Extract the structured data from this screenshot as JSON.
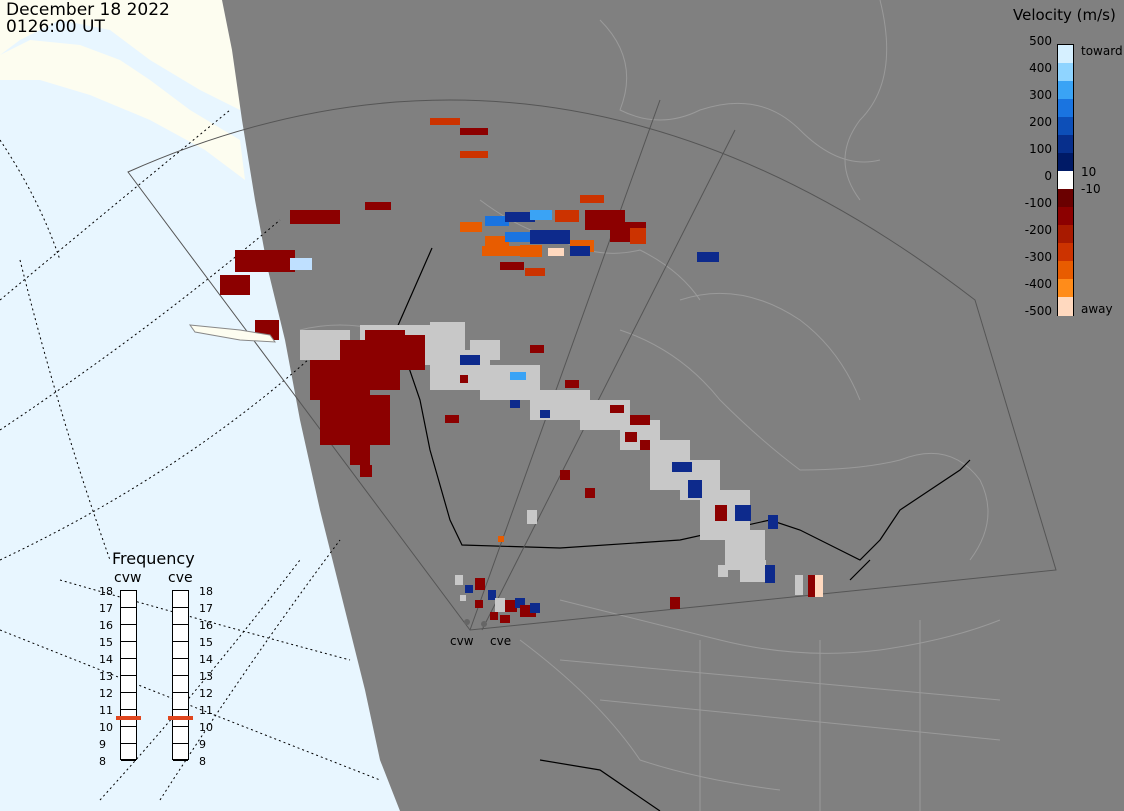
{
  "header": {
    "date": "December 18 2022",
    "time": "0126:00 UT"
  },
  "stations": [
    {
      "name": "cvw"
    },
    {
      "name": "cve"
    }
  ],
  "velocity_legend": {
    "title": "Velocity (m/s)",
    "ticks": [
      "500",
      "400",
      "300",
      "200",
      "100",
      "10",
      "0",
      "-10",
      "-100",
      "-200",
      "-300",
      "-400",
      "-500"
    ],
    "toward_label": "toward",
    "away_label": "away",
    "colors": {
      "toward": [
        "#d6f0ff",
        "#8fd4ff",
        "#3aa3f5",
        "#1a74e0",
        "#0d4fb8",
        "#072f8c",
        "#001a66"
      ],
      "away": [
        "#6a0000",
        "#8c0000",
        "#a81a00",
        "#cc3300",
        "#e85c00",
        "#ff8c1a",
        "#ffd9bf"
      ],
      "gs": "#c8c8c8"
    }
  },
  "frequency_legend": {
    "title": "Frequency",
    "columns": [
      {
        "name": "cvw",
        "value": 10.5
      },
      {
        "name": "cve",
        "value": 10.5
      }
    ],
    "levels": [
      "18",
      "17",
      "16",
      "15",
      "14",
      "13",
      "12",
      "11",
      "10",
      "9",
      "8"
    ],
    "marker_color": "#e0461e"
  },
  "map_colors": {
    "night": "#808080",
    "day_ocean": "#e8f6ff",
    "day_land": "#fdfdf0",
    "coast": "#9a9a9a",
    "border": "#000000"
  }
}
